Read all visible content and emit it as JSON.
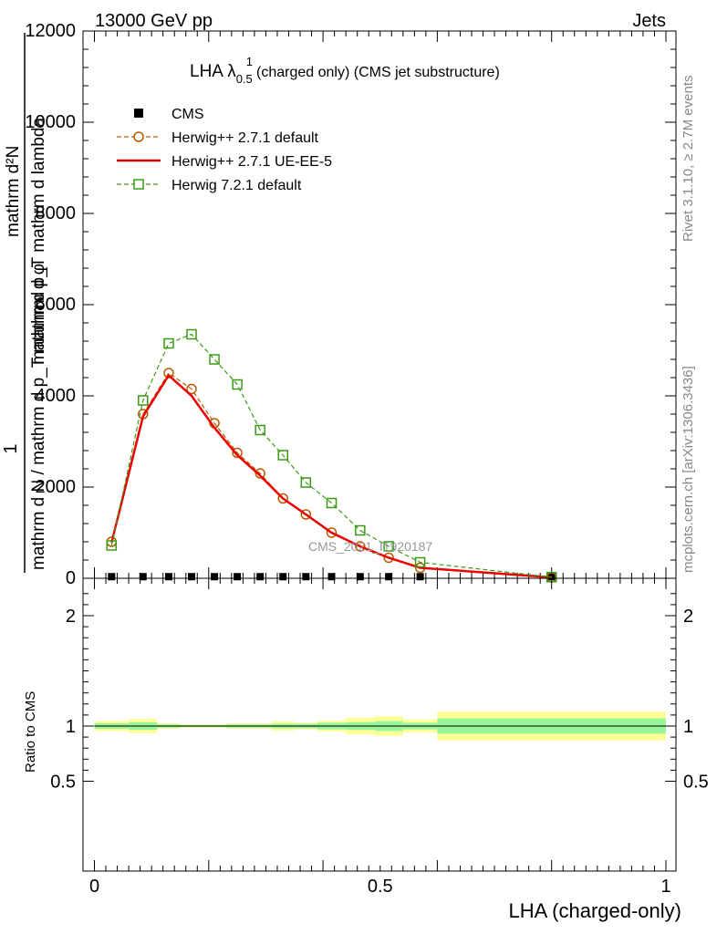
{
  "header": {
    "left": "13000 GeV pp",
    "right": "Jets"
  },
  "side_labels": {
    "rivet": "Rivet 3.1.10, ≥ 2.7M events",
    "mcplots": "mcplots.cern.ch [arXiv:1306.3436]"
  },
  "watermark": "CMS_2021_I1920187",
  "chart_data": [
    {
      "type": "line",
      "title": "LHA λ",
      "title_sup": "1",
      "title_sub": "0.5",
      "title_suffix": "(charged only) (CMS jet substructure)",
      "ylabel_numerator": "1",
      "ylabel_denominator": "mathrm d N / mathrm d p_T mathrm d φ",
      "ylabel_top": "mathrm d²N",
      "ylabel_bottom": "mathrm d p_T mathrm d lambda",
      "ylim": [
        0,
        12000
      ],
      "xlim": [
        -0.02,
        1.0
      ],
      "yticks": [
        0,
        2000,
        4000,
        6000,
        8000,
        10000,
        12000
      ],
      "ytick_labels": [
        "0",
        "2000",
        "4000",
        "6000",
        "8000",
        "10000",
        "12000"
      ],
      "grid": false,
      "legend_position": "top-left",
      "series": [
        {
          "name": "CMS",
          "style": "data",
          "color": "#000000",
          "x": [
            0.03,
            0.085,
            0.13,
            0.17,
            0.21,
            0.25,
            0.29,
            0.33,
            0.37,
            0.415,
            0.465,
            0.515,
            0.57,
            0.8
          ],
          "y": [
            35,
            35,
            35,
            35,
            35,
            35,
            35,
            35,
            35,
            35,
            35,
            35,
            35,
            35
          ]
        },
        {
          "name": "Herwig++ 2.7.1 default",
          "style": "dashed-circle",
          "color": "#b85c00",
          "x": [
            0.03,
            0.085,
            0.13,
            0.17,
            0.21,
            0.25,
            0.29,
            0.33,
            0.37,
            0.415,
            0.465,
            0.515,
            0.57,
            0.8
          ],
          "y": [
            800,
            3600,
            4500,
            4150,
            3400,
            2750,
            2300,
            1750,
            1400,
            1000,
            700,
            450,
            230,
            20
          ]
        },
        {
          "name": "Herwig++ 2.7.1 UE-EE-5",
          "style": "solid",
          "color": "#ee0000",
          "x": [
            0.03,
            0.085,
            0.13,
            0.17,
            0.21,
            0.25,
            0.29,
            0.33,
            0.37,
            0.415,
            0.465,
            0.515,
            0.57,
            0.8
          ],
          "y": [
            780,
            3550,
            4450,
            4000,
            3300,
            2700,
            2250,
            1750,
            1400,
            1000,
            700,
            450,
            230,
            20
          ]
        },
        {
          "name": "Herwig 7.2.1 default",
          "style": "dashed-square",
          "color": "#3a9a16",
          "x": [
            0.03,
            0.085,
            0.13,
            0.17,
            0.21,
            0.25,
            0.29,
            0.33,
            0.37,
            0.415,
            0.465,
            0.515,
            0.57,
            0.8
          ],
          "y": [
            720,
            3900,
            5150,
            5350,
            4800,
            4250,
            3250,
            2700,
            2100,
            1650,
            1050,
            700,
            350,
            25
          ]
        }
      ]
    },
    {
      "type": "area",
      "ylabel": "Ratio to CMS",
      "xlabel": "LHA (charged-only)",
      "ylim": [
        0.4,
        2.4
      ],
      "ytick_labels": [
        "0.5",
        "1",
        "2"
      ],
      "yticks": [
        0.5,
        1,
        2
      ],
      "xlim": [
        -0.02,
        1.0
      ],
      "xticks": [
        0,
        0.5,
        1
      ],
      "xtick_labels": [
        "0",
        "0.5",
        "1"
      ],
      "bin_edges": [
        0.0,
        0.06,
        0.11,
        0.15,
        0.19,
        0.23,
        0.27,
        0.31,
        0.35,
        0.39,
        0.44,
        0.49,
        0.54,
        0.6,
        1.0
      ],
      "band_inner": {
        "low": [
          0.975,
          0.965,
          0.985,
          0.99,
          0.99,
          0.985,
          0.985,
          0.98,
          0.98,
          0.97,
          0.965,
          0.955,
          0.97,
          0.93
        ],
        "high": [
          1.025,
          1.035,
          1.015,
          1.01,
          1.01,
          1.015,
          1.015,
          1.02,
          1.02,
          1.03,
          1.035,
          1.045,
          1.03,
          1.07
        ]
      },
      "band_outer": {
        "low": [
          0.955,
          0.935,
          0.975,
          0.985,
          0.985,
          0.975,
          0.975,
          0.96,
          0.97,
          0.95,
          0.925,
          0.91,
          0.94,
          0.87
        ],
        "high": [
          1.045,
          1.065,
          1.025,
          1.015,
          1.015,
          1.025,
          1.025,
          1.04,
          1.03,
          1.05,
          1.075,
          1.09,
          1.06,
          1.13
        ]
      },
      "colors": {
        "inner": "#99f599",
        "outer": "#ffff99"
      }
    }
  ]
}
